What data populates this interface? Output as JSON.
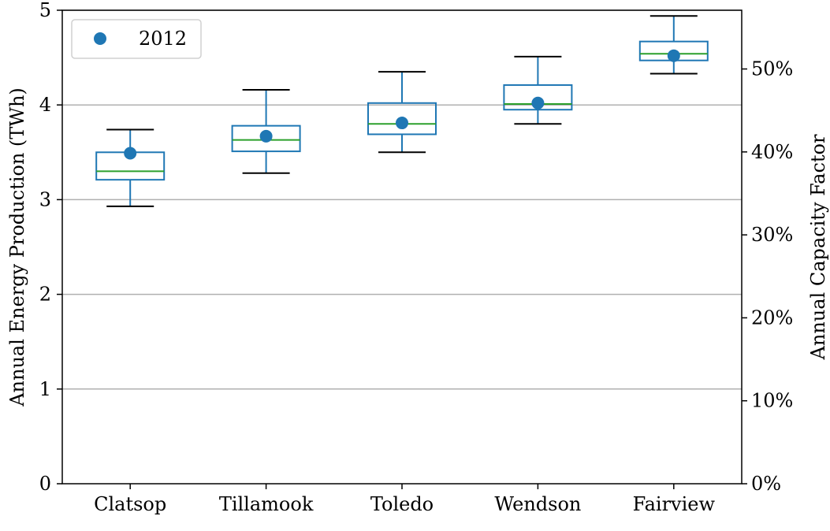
{
  "chart_data": {
    "type": "box",
    "ylabel": "Annual Energy Production (TWh)",
    "y2label": "Annual Capacity Factor",
    "ylim": [
      0,
      5
    ],
    "yticks": [
      0,
      1,
      2,
      3,
      4,
      5
    ],
    "y2lim": [
      0,
      0.5708
    ],
    "y2ticks": [
      "0%",
      "10%",
      "20%",
      "30%",
      "40%",
      "50%"
    ],
    "y2tick_values": [
      0,
      0.1,
      0.2,
      0.3,
      0.4,
      0.5
    ],
    "grid": "horizontal",
    "legend": {
      "placement": "top-left",
      "label": "2012"
    },
    "categories": [
      "Clatsop",
      "Tillamook",
      "Toledo",
      "Wendson",
      "Fairview"
    ],
    "boxes": [
      {
        "category": "Clatsop",
        "whisker_low": 2.93,
        "q1": 3.21,
        "median": 3.3,
        "q3": 3.5,
        "whisker_high": 3.74,
        "point_2012": 3.49
      },
      {
        "category": "Tillamook",
        "whisker_low": 3.28,
        "q1": 3.51,
        "median": 3.63,
        "q3": 3.78,
        "whisker_high": 4.16,
        "point_2012": 3.67
      },
      {
        "category": "Toledo",
        "whisker_low": 3.5,
        "q1": 3.69,
        "median": 3.8,
        "q3": 4.02,
        "whisker_high": 4.35,
        "point_2012": 3.81
      },
      {
        "category": "Wendson",
        "whisker_low": 3.8,
        "q1": 3.95,
        "median": 4.01,
        "q3": 4.21,
        "whisker_high": 4.51,
        "point_2012": 4.02
      },
      {
        "category": "Fairview",
        "whisker_low": 4.33,
        "q1": 4.47,
        "median": 4.54,
        "q3": 4.67,
        "whisker_high": 4.94,
        "point_2012": 4.52
      }
    ],
    "colors": {
      "box": "#1f77b4",
      "median": "#2ca02c",
      "point": "#1f77b4",
      "whisker_cap": "#000000",
      "grid": "#b0b0b0"
    }
  }
}
